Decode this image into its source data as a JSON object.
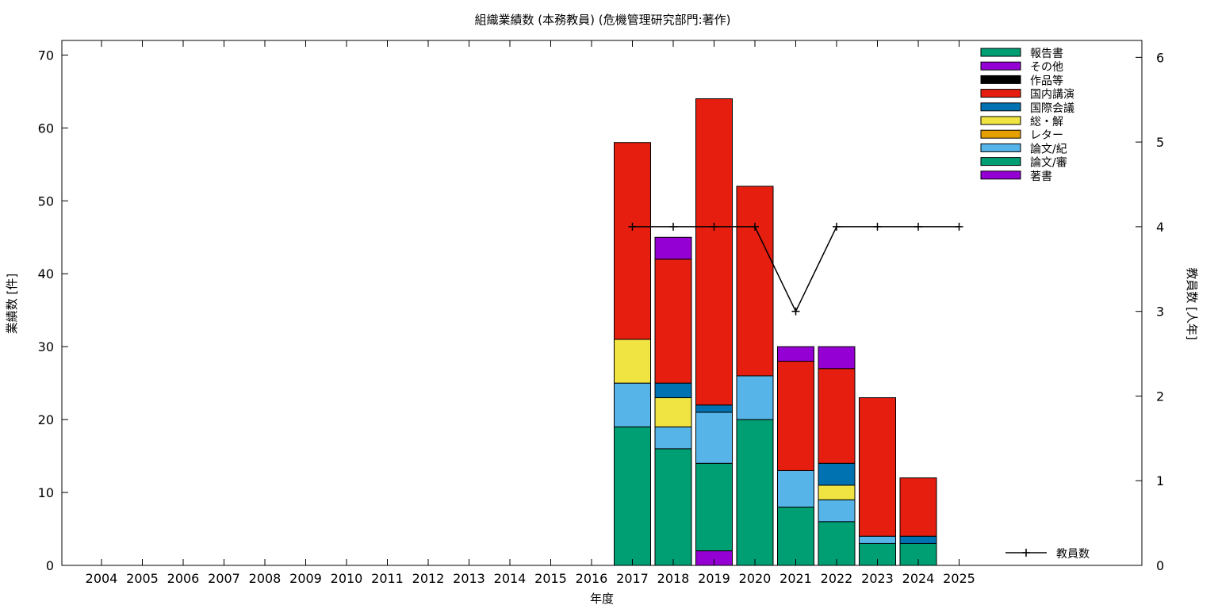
{
  "chart_data": {
    "type": "bar",
    "stacked": true,
    "title": "組織業績数 (本務教員) (危機管理研究部門:著作)",
    "xlabel": "年度",
    "ylabel": "業績数 [件]",
    "y2label": "教員数 [人年]",
    "ylim": [
      0,
      72
    ],
    "y2lim": [
      0,
      6.2
    ],
    "yticks": [
      "0",
      "10",
      "20",
      "30",
      "40",
      "50",
      "60",
      "70"
    ],
    "y2ticks": [
      "0",
      "1",
      "2",
      "3",
      "4",
      "5",
      "6"
    ],
    "categories": [
      "2004",
      "2005",
      "2006",
      "2007",
      "2008",
      "2009",
      "2010",
      "2011",
      "2012",
      "2013",
      "2014",
      "2015",
      "2016",
      "2017",
      "2018",
      "2019",
      "2020",
      "2021",
      "2022",
      "2023",
      "2024",
      "2025"
    ],
    "series": [
      {
        "name": "著書",
        "color": "#9400d3",
        "values": [
          0,
          0,
          0,
          0,
          0,
          0,
          0,
          0,
          0,
          0,
          0,
          0,
          0,
          0,
          0,
          2,
          0,
          0,
          0,
          0,
          0,
          0
        ]
      },
      {
        "name": "論文/審",
        "color": "#009e73",
        "values": [
          0,
          0,
          0,
          0,
          0,
          0,
          0,
          0,
          0,
          0,
          0,
          0,
          0,
          19,
          16,
          12,
          20,
          8,
          6,
          3,
          3,
          0
        ]
      },
      {
        "name": "論文/紀",
        "color": "#56b4e9",
        "values": [
          0,
          0,
          0,
          0,
          0,
          0,
          0,
          0,
          0,
          0,
          0,
          0,
          0,
          6,
          3,
          7,
          6,
          5,
          3,
          1,
          0,
          0
        ]
      },
      {
        "name": "レター",
        "color": "#e69f00",
        "values": [
          0,
          0,
          0,
          0,
          0,
          0,
          0,
          0,
          0,
          0,
          0,
          0,
          0,
          0,
          0,
          0,
          0,
          0,
          0,
          0,
          0,
          0
        ]
      },
      {
        "name": "総・解",
        "color": "#f0e442",
        "values": [
          0,
          0,
          0,
          0,
          0,
          0,
          0,
          0,
          0,
          0,
          0,
          0,
          0,
          6,
          4,
          0,
          0,
          0,
          2,
          0,
          0,
          0
        ]
      },
      {
        "name": "国際会議",
        "color": "#0072b2",
        "values": [
          0,
          0,
          0,
          0,
          0,
          0,
          0,
          0,
          0,
          0,
          0,
          0,
          0,
          0,
          2,
          1,
          0,
          0,
          3,
          0,
          1,
          0
        ]
      },
      {
        "name": "国内講演",
        "color": "#e51e10",
        "values": [
          0,
          0,
          0,
          0,
          0,
          0,
          0,
          0,
          0,
          0,
          0,
          0,
          0,
          27,
          17,
          42,
          26,
          15,
          13,
          19,
          8,
          0
        ]
      },
      {
        "name": "作品等",
        "color": "#000000",
        "values": [
          0,
          0,
          0,
          0,
          0,
          0,
          0,
          0,
          0,
          0,
          0,
          0,
          0,
          0,
          0,
          0,
          0,
          0,
          0,
          0,
          0,
          0
        ]
      },
      {
        "name": "その他",
        "color": "#9400d3",
        "values": [
          0,
          0,
          0,
          0,
          0,
          0,
          0,
          0,
          0,
          0,
          0,
          0,
          0,
          0,
          3,
          0,
          0,
          2,
          3,
          0,
          0,
          0
        ]
      },
      {
        "name": "報告書",
        "color": "#009e73",
        "values": [
          0,
          0,
          0,
          0,
          0,
          0,
          0,
          0,
          0,
          0,
          0,
          0,
          0,
          0,
          0,
          0,
          0,
          0,
          0,
          0,
          0,
          0
        ]
      }
    ],
    "line_series": {
      "name": "教員数",
      "color": "#000000",
      "x": [
        "2017",
        "2018",
        "2019",
        "2020",
        "2021",
        "2022",
        "2023",
        "2024",
        "2025"
      ],
      "values": [
        4,
        4,
        4,
        4,
        3,
        4,
        4,
        4,
        4
      ]
    },
    "legend_position": "top-right",
    "line_legend_position": "bottom-right",
    "grid": false
  }
}
